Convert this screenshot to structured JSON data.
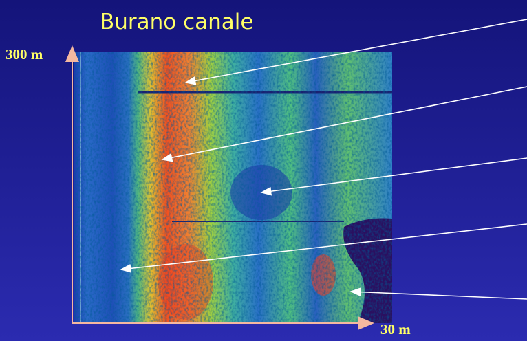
{
  "title": "Burano canale",
  "axes": {
    "y_label": "300 m",
    "x_label": "30 m"
  }
}
